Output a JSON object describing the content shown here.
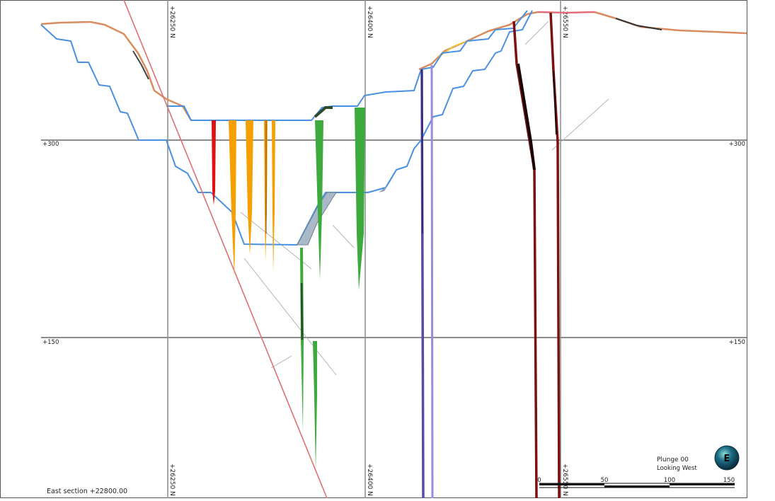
{
  "section": {
    "caption": "East section +22800.00",
    "plunge": "Plunge 00",
    "looking": "Looking West",
    "compass_letter": "E"
  },
  "grid": {
    "northings": [
      {
        "top_label": "+26250 N",
        "bottom_label": "+26250 N"
      },
      {
        "top_label": "+26400 N",
        "bottom_label": "+26400 N"
      },
      {
        "top_label": "+26550 N",
        "bottom_label": "+26550 N"
      }
    ],
    "elevations": [
      {
        "left_label": "+300",
        "right_label": "+300"
      },
      {
        "left_label": "+150",
        "right_label": "+150"
      }
    ]
  },
  "scale_bar": {
    "ticks": [
      "0",
      "50",
      "100",
      "150"
    ]
  },
  "colors": {
    "grid": "#8c8c8c",
    "pit_outline": "#4a90e2",
    "topography": "#d98c5f",
    "fault": "#e07070",
    "red_hole": "#e01010",
    "orange_hole": "#f5a000",
    "green_hole": "#3caa3c",
    "purple_hole": "#7a62c8",
    "maroon_hole": "#7a1010"
  }
}
